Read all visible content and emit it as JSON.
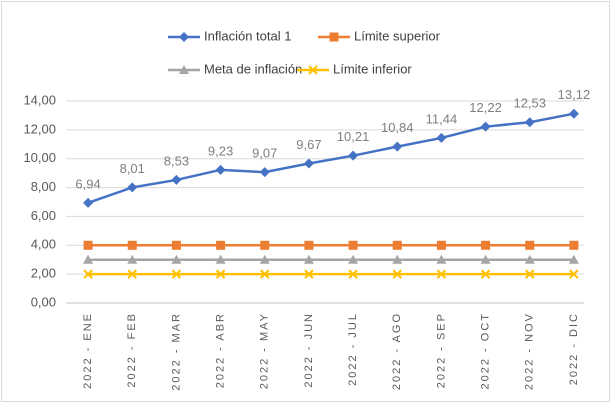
{
  "chart_data": {
    "type": "line",
    "categories": [
      "2022 - ENE",
      "2022 - FEB",
      "2022 - MAR",
      "2022 - ABR",
      "2022 - MAY",
      "2022 - JUN",
      "2022 - JUL",
      "2022 - AGO",
      "2022 - SEP",
      "2022 - OCT",
      "2022 - NOV",
      "2022 - DIC"
    ],
    "series": [
      {
        "name": "Inflación total 1",
        "color": "#4472c4",
        "marker": "diamond",
        "values": [
          6.94,
          8.01,
          8.53,
          9.23,
          9.07,
          9.67,
          10.21,
          10.84,
          11.44,
          12.22,
          12.53,
          13.12
        ],
        "value_labels": [
          "6,94",
          "8,01",
          "8,53",
          "9,23",
          "9,07",
          "9,67",
          "10,21",
          "10,84",
          "11,44",
          "12,22",
          "12,53",
          "13,12"
        ]
      },
      {
        "name": "Límite superior",
        "color": "#ed7d31",
        "marker": "square",
        "values": [
          4,
          4,
          4,
          4,
          4,
          4,
          4,
          4,
          4,
          4,
          4,
          4
        ]
      },
      {
        "name": "Meta de inflación",
        "color": "#a5a5a5",
        "marker": "triangle",
        "values": [
          3,
          3,
          3,
          3,
          3,
          3,
          3,
          3,
          3,
          3,
          3,
          3
        ]
      },
      {
        "name": "Límite inferior",
        "color": "#ffc000",
        "marker": "x",
        "values": [
          2,
          2,
          2,
          2,
          2,
          2,
          2,
          2,
          2,
          2,
          2,
          2
        ]
      }
    ],
    "ylim": [
      0,
      14
    ],
    "yticks": [
      {
        "value": 0,
        "label": "0,00"
      },
      {
        "value": 2,
        "label": "2,00"
      },
      {
        "value": 4,
        "label": "4,00"
      },
      {
        "value": 6,
        "label": "6,00"
      },
      {
        "value": 8,
        "label": "8,00"
      },
      {
        "value": 10,
        "label": "10,00"
      },
      {
        "value": 12,
        "label": "12,00"
      },
      {
        "value": 14,
        "label": "14,00"
      }
    ],
    "grid": true,
    "legend": "top"
  }
}
